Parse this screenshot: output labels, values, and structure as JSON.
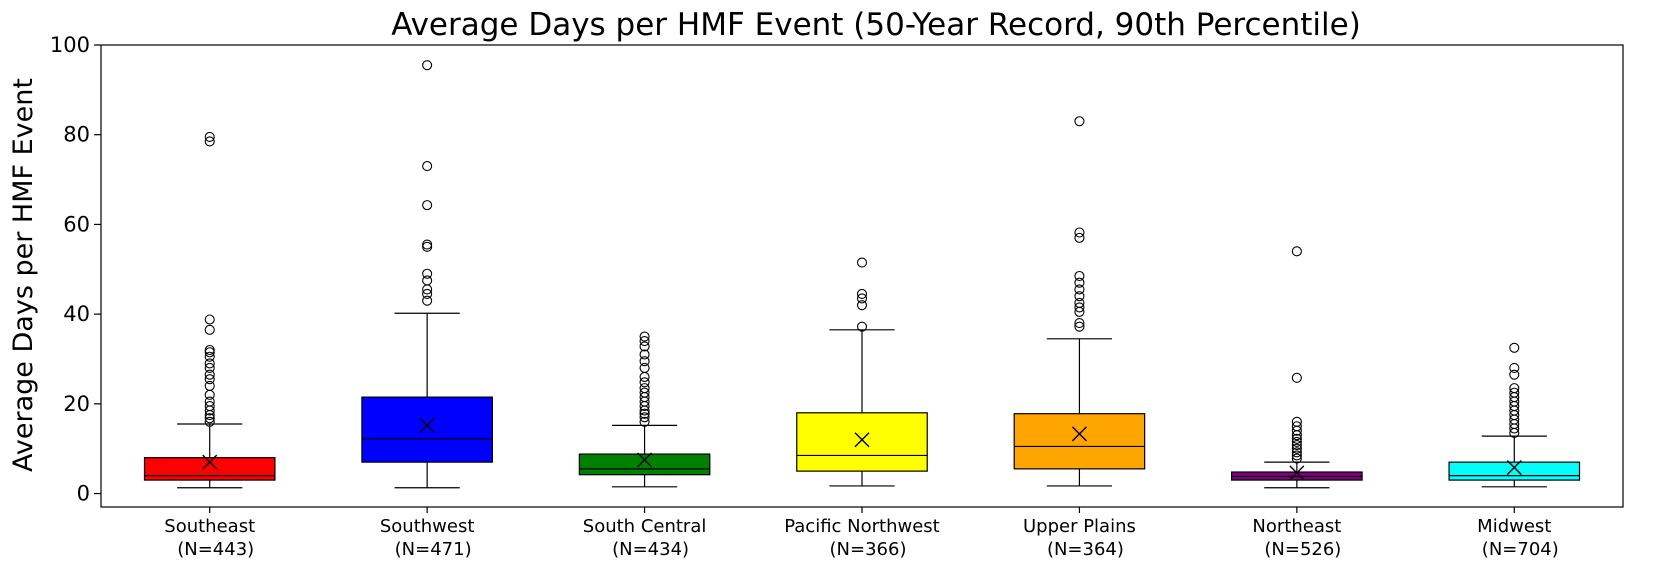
{
  "chart_data": {
    "type": "boxplot",
    "title": "Average Days per HMF Event (50-Year Record, 90th Percentile)",
    "ylabel": "Average Days per HMF Event",
    "xlabel": "",
    "ylim": [
      -3,
      100
    ],
    "yticks": [
      0,
      20,
      40,
      60,
      80,
      100
    ],
    "grid": false,
    "mean_marker": "x",
    "categories": [
      {
        "label": "Southeast",
        "n_label": "(N=443)",
        "color": "#ff0000",
        "whisker_low": 1.3,
        "q1": 3.0,
        "median": 4.0,
        "q3": 8.0,
        "whisker_high": 15.5,
        "mean": 7.0,
        "outliers": [
          16.0,
          16.8,
          17.5,
          18.5,
          19.5,
          20.5,
          22.0,
          24.0,
          25.5,
          26.5,
          28.0,
          29.0,
          30.5,
          31.5,
          32.0,
          36.5,
          38.8,
          78.5,
          79.5
        ]
      },
      {
        "label": "Southwest",
        "n_label": "(N=471)",
        "color": "#0000ff",
        "whisker_low": 1.3,
        "q1": 7.0,
        "median": 12.2,
        "q3": 21.5,
        "whisker_high": 40.2,
        "mean": 15.2,
        "outliers": [
          43.0,
          44.5,
          45.5,
          47.5,
          49.0,
          55.0,
          55.5,
          64.3,
          73.0,
          95.5
        ]
      },
      {
        "label": "South Central",
        "n_label": "(N=434)",
        "color": "#008000",
        "whisker_low": 1.5,
        "q1": 4.2,
        "median": 5.5,
        "q3": 8.8,
        "whisker_high": 15.2,
        "mean": 7.5,
        "outliers": [
          16.0,
          17.0,
          17.8,
          18.5,
          19.5,
          20.5,
          21.5,
          22.5,
          23.5,
          24.8,
          26.0,
          28.0,
          29.5,
          31.0,
          32.8,
          34.0,
          35.0
        ]
      },
      {
        "label": "Pacific Northwest",
        "n_label": "(N=366)",
        "color": "#ffff00",
        "whisker_low": 1.7,
        "q1": 5.0,
        "median": 8.5,
        "q3": 18.0,
        "whisker_high": 36.5,
        "mean": 12.0,
        "outliers": [
          37.2,
          42.0,
          43.5,
          44.5,
          51.5
        ]
      },
      {
        "label": "Upper Plains",
        "n_label": "(N=364)",
        "color": "#ffa500",
        "whisker_low": 1.7,
        "q1": 5.5,
        "median": 10.5,
        "q3": 17.8,
        "whisker_high": 34.5,
        "mean": 13.3,
        "outliers": [
          37.2,
          38.0,
          40.5,
          41.5,
          42.5,
          44.0,
          45.5,
          47.0,
          48.5,
          57.0,
          58.2,
          83.0
        ]
      },
      {
        "label": "Northeast",
        "n_label": "(N=526)",
        "color": "#800080",
        "whisker_low": 1.3,
        "q1": 3.0,
        "median": 3.8,
        "q3": 4.8,
        "whisker_high": 7.0,
        "mean": 4.6,
        "outliers": [
          7.8,
          8.5,
          9.2,
          10.0,
          10.8,
          11.5,
          12.2,
          13.0,
          14.0,
          15.0,
          16.0,
          25.8,
          54.0
        ]
      },
      {
        "label": "Midwest",
        "n_label": "(N=704)",
        "color": "#00ffff",
        "whisker_low": 1.5,
        "q1": 3.0,
        "median": 4.0,
        "q3": 7.0,
        "whisker_high": 12.8,
        "mean": 5.8,
        "outliers": [
          13.5,
          14.5,
          15.5,
          16.5,
          17.5,
          18.5,
          19.5,
          20.5,
          21.5,
          22.5,
          23.5,
          26.5,
          28.0,
          32.5
        ]
      }
    ]
  }
}
